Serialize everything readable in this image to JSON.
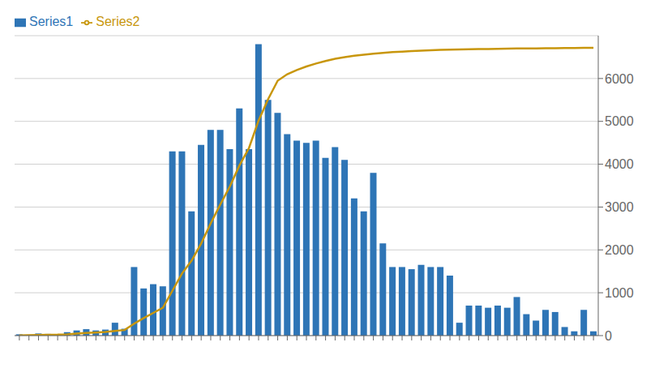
{
  "chart_data": {
    "type": "bar",
    "categories": [
      null,
      null,
      null,
      null,
      null,
      null,
      null,
      null,
      null,
      null,
      null,
      null,
      null,
      null,
      null,
      null,
      null,
      null,
      null,
      null,
      null,
      null,
      null,
      null,
      null,
      null,
      null,
      null,
      null,
      null,
      null,
      null,
      null,
      null,
      null,
      null,
      null,
      null,
      null,
      null,
      null,
      null,
      null,
      null,
      null,
      null,
      null,
      null,
      null,
      null,
      null,
      null,
      null,
      null,
      null,
      null,
      null,
      null,
      null,
      null,
      null
    ],
    "series": [
      {
        "name": "Series1",
        "type": "bar",
        "color": "#2e75b6",
        "values": [
          30,
          20,
          50,
          40,
          30,
          80,
          120,
          150,
          120,
          140,
          300,
          160,
          1600,
          1100,
          1200,
          1150,
          4300,
          4300,
          2900,
          4450,
          4800,
          4800,
          4350,
          5300,
          4350,
          6800,
          5500,
          5200,
          4700,
          4550,
          4500,
          4550,
          4150,
          4400,
          4100,
          3200,
          2900,
          3800,
          2150,
          1600,
          1600,
          1550,
          1650,
          1600,
          1600,
          1400,
          300,
          700,
          700,
          650,
          700,
          650,
          900,
          500,
          350,
          600,
          550,
          200,
          100,
          600,
          100
        ]
      },
      {
        "name": "Series2",
        "type": "line",
        "axis": "y2",
        "color": "#c8960c",
        "values": [
          5,
          8,
          15,
          20,
          22,
          30,
          45,
          60,
          72,
          85,
          110,
          130,
          280,
          410,
          530,
          650,
          1050,
          1450,
          1750,
          2150,
          2620,
          3060,
          3480,
          3970,
          4380,
          5020,
          5520,
          5950,
          6100,
          6200,
          6280,
          6350,
          6410,
          6460,
          6500,
          6530,
          6555,
          6580,
          6600,
          6615,
          6628,
          6640,
          6651,
          6660,
          6669,
          6676,
          6678,
          6682,
          6686,
          6689,
          6693,
          6696,
          6700,
          6702,
          6704,
          6706,
          6708,
          6710,
          6711,
          6714,
          6715
        ]
      }
    ],
    "ylim": [
      0,
      7000
    ],
    "y2lim": [
      0,
      7000
    ],
    "y2ticks": [
      0,
      1000,
      2000,
      3000,
      4000,
      5000,
      6000
    ],
    "grid": true,
    "legend": "upper left"
  }
}
